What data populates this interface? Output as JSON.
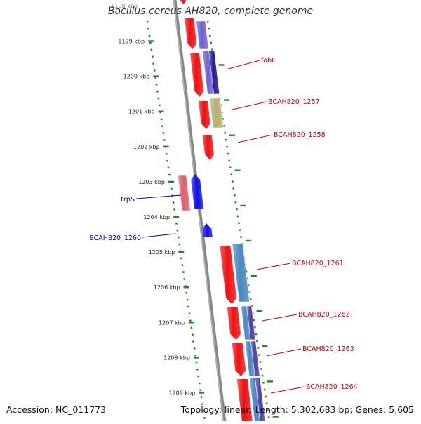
{
  "title": "Bacillus cereus AH820, complete genome",
  "accession": "Accession: NC_011773",
  "summary": "Topology: linear; Length: 5,302,683 bp; Genes: 5,605",
  "top_faded_label": "1198 kbp",
  "ticks": [
    {
      "label": "1199 kbp",
      "kbp": 1199
    },
    {
      "label": "1200 kbp",
      "kbp": 1200
    },
    {
      "label": "1201 kbp",
      "kbp": 1201
    },
    {
      "label": "1202 kbp",
      "kbp": 1202
    },
    {
      "label": "1203 kbp",
      "kbp": 1203
    },
    {
      "label": "1204 kbp",
      "kbp": 1204
    },
    {
      "label": "1205 kbp",
      "kbp": 1205
    },
    {
      "label": "1206 kbp",
      "kbp": 1206
    },
    {
      "label": "1207 kbp",
      "kbp": 1207
    },
    {
      "label": "1208 kbp",
      "kbp": 1208
    },
    {
      "label": "1209 kbp",
      "kbp": 1209
    }
  ],
  "gene_labels_forward": [
    "fabF",
    "BCAH820_1257",
    "BCAH820_1258",
    "BCAH820_1261",
    "BCAH820_1262",
    "BCAH820_1263",
    "BCAH820_1264"
  ],
  "gene_labels_reverse": [
    "trpS",
    "BCAH820_1260"
  ],
  "colors": {
    "cds_forward": "#ee1111",
    "cds_reverse": "#1111ee",
    "rna_reverse": "#e06070",
    "backbone": "#888888",
    "ruler": "#1f8a1f",
    "label_forward": "#cc0000",
    "label_reverse": "#0000bb",
    "cog_purple": "#7060d0",
    "cog_navy": "#202090",
    "cog_olive": "#b8b070",
    "cog_steel": "#4a88c0",
    "cog_indigo": "#5040a0"
  }
}
